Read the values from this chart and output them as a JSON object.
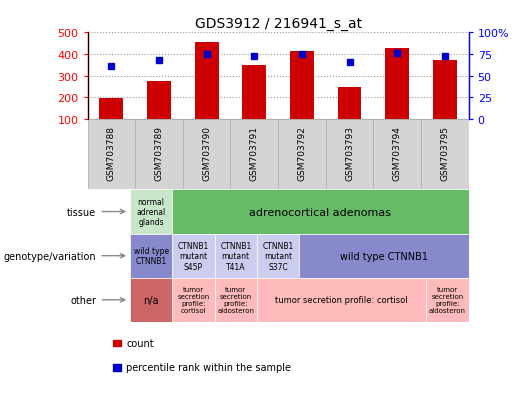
{
  "title": "GDS3912 / 216941_s_at",
  "samples": [
    "GSM703788",
    "GSM703789",
    "GSM703790",
    "GSM703791",
    "GSM703792",
    "GSM703793",
    "GSM703794",
    "GSM703795"
  ],
  "counts": [
    195,
    275,
    455,
    350,
    415,
    248,
    425,
    370
  ],
  "percentile_ranks": [
    61,
    68,
    75,
    73,
    75,
    66,
    76,
    72
  ],
  "ylim_left": [
    100,
    500
  ],
  "ylim_right": [
    0,
    100
  ],
  "yticks_left": [
    100,
    200,
    300,
    400,
    500
  ],
  "yticks_right": [
    0,
    25,
    50,
    75,
    100
  ],
  "bar_color": "#cc0000",
  "dot_color": "#0000cc",
  "bar_bottom": 100,
  "tissue_col0_color": "#c8e6c8",
  "tissue_col1_7_color": "#66bb66",
  "geno_col0_color": "#8888cc",
  "geno_col1_3_color": "#ccccee",
  "geno_col4_7_color": "#8888cc",
  "other_col0_color": "#cc6666",
  "other_color": "#ffbbbb",
  "grid_color": "#999999",
  "label_arrow_color": "#888888",
  "tick_bg_color": "#d4d4d4",
  "tick_border_color": "#aaaaaa"
}
